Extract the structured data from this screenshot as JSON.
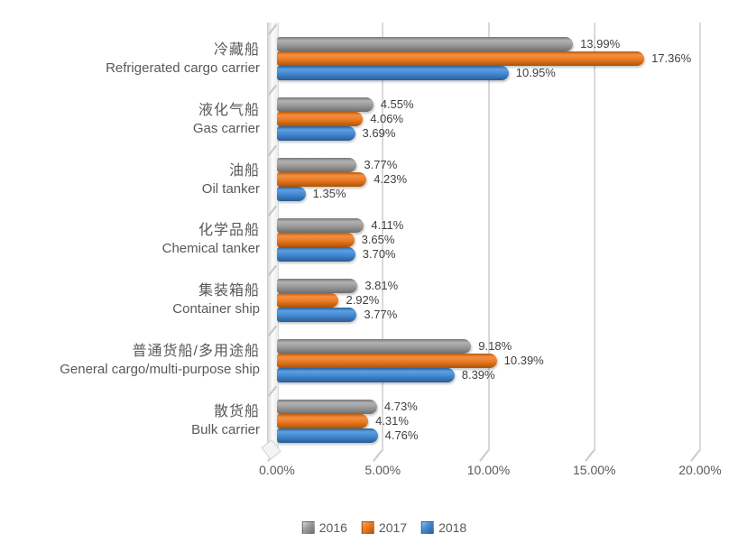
{
  "chart_data": {
    "type": "bar",
    "orientation": "horizontal",
    "title": "",
    "x_ticks": [
      "0.00%",
      "5.00%",
      "10.00%",
      "15.00%",
      "20.00%"
    ],
    "x_tick_values": [
      0,
      5,
      10,
      15,
      20
    ],
    "xlim": [
      0,
      20
    ],
    "grid": true,
    "legend_position": "bottom",
    "legend": [
      "2016",
      "2017",
      "2018"
    ],
    "series_colors": [
      "#9b9b9b",
      "#ea7a22",
      "#4288d2"
    ],
    "categories": [
      {
        "zh": "冷藏船",
        "en": "Refrigerated cargo carrier"
      },
      {
        "zh": "液化气船",
        "en": "Gas carrier"
      },
      {
        "zh": "油船",
        "en": "Oil tanker"
      },
      {
        "zh": "化学品船",
        "en": "Chemical tanker"
      },
      {
        "zh": "集装箱船",
        "en": "Container ship"
      },
      {
        "zh": "普通货船/多用途船",
        "en": "General cargo/multi-purpose ship"
      },
      {
        "zh": "散货船",
        "en": "Bulk carrier"
      }
    ],
    "series": [
      {
        "name": "2016",
        "values": [
          13.99,
          4.55,
          3.77,
          4.11,
          3.81,
          9.18,
          4.73
        ],
        "labels": [
          "13.99%",
          "4.55%",
          "3.77%",
          "4.11%",
          "3.81%",
          "9.18%",
          "4.73%"
        ]
      },
      {
        "name": "2017",
        "values": [
          17.36,
          4.06,
          4.23,
          3.65,
          2.92,
          10.39,
          4.31
        ],
        "labels": [
          "17.36%",
          "4.06%",
          "4.23%",
          "3.65%",
          "2.92%",
          "10.39%",
          "4.31%"
        ]
      },
      {
        "name": "2018",
        "values": [
          10.95,
          3.69,
          1.35,
          3.7,
          3.77,
          8.39,
          4.76
        ],
        "labels": [
          "10.95%",
          "3.69%",
          "1.35%",
          "3.70%",
          "3.77%",
          "8.39%",
          "4.76%"
        ]
      }
    ]
  }
}
